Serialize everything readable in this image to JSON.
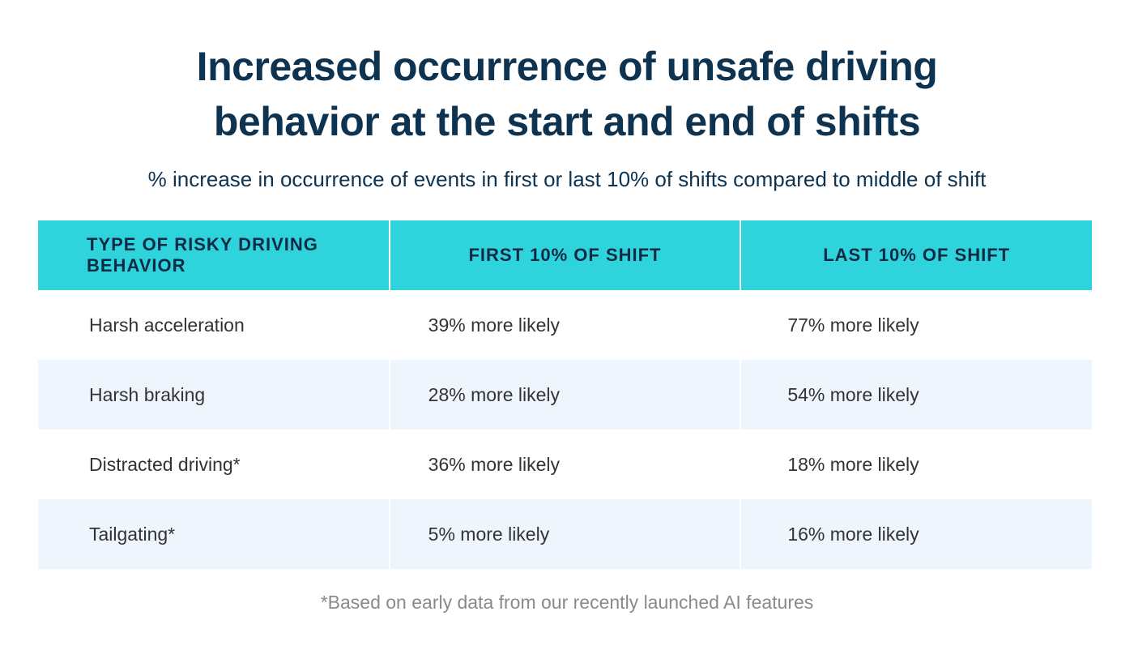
{
  "title_line1": "Increased occurrence of unsafe driving",
  "title_line2": "behavior at the start and end of shifts",
  "subtitle": "% increase in occurrence of events in first or last 10% of shifts compared to middle of shift",
  "colors": {
    "header_bg": "#2fd3dc",
    "title": "#0d3350",
    "alt_row": "#eef5fd"
  },
  "chart_data": {
    "type": "table",
    "columns": [
      "TYPE OF RISKY DRIVING BEHAVIOR",
      "FIRST 10% OF SHIFT",
      "LAST 10% OF SHIFT"
    ],
    "rows": [
      [
        "Harsh acceleration",
        "39% more likely",
        "77% more likely"
      ],
      [
        "Harsh braking",
        "28% more likely",
        "54% more likely"
      ],
      [
        "Distracted driving*",
        "36% more likely",
        "18% more likely"
      ],
      [
        "Tailgating*",
        "5% more likely",
        "16% more likely"
      ]
    ]
  },
  "footnote": "*Based on early data from our recently launched AI features"
}
